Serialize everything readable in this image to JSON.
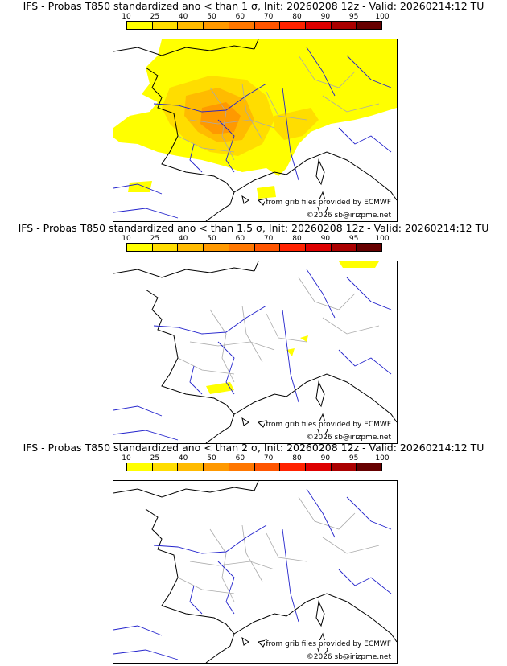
{
  "colorbar": {
    "ticks": [
      "10",
      "25",
      "40",
      "50",
      "60",
      "70",
      "80",
      "90",
      "95",
      "100"
    ],
    "colors": [
      "#ffff00",
      "#ffdd00",
      "#ffbb00",
      "#ff9900",
      "#ff7700",
      "#ff5500",
      "#ff2200",
      "#dd0000",
      "#aa0000",
      "#660000"
    ]
  },
  "panels": [
    {
      "title": "IFS - Probas T850  standardized ano < than 1 σ, Init: 20260208 12z - Valid: 20260214:12 TU",
      "credit_grib": "from grib files provided by ECMWF",
      "credit_copyright": "©2026 sb@irizpme.net"
    },
    {
      "title": "IFS - Probas T850  standardized ano < than 1.5 σ, Init: 20260208 12z - Valid: 20260214:12 TU",
      "credit_grib": "from grib files provided by ECMWF",
      "credit_copyright": "©2026 sb@irizpme.net"
    },
    {
      "title": "IFS - Probas T850  standardized ano < than 2 σ, Init: 20260208 12z - Valid: 20260214:12 TU",
      "credit_grib": "from grib files provided by ECMWF",
      "credit_copyright": "©2026 sb@irizpme.net"
    }
  ],
  "map_colors": {
    "coast": "#000000",
    "rivers": "#2222cc",
    "borders": "#aaaaaa"
  }
}
